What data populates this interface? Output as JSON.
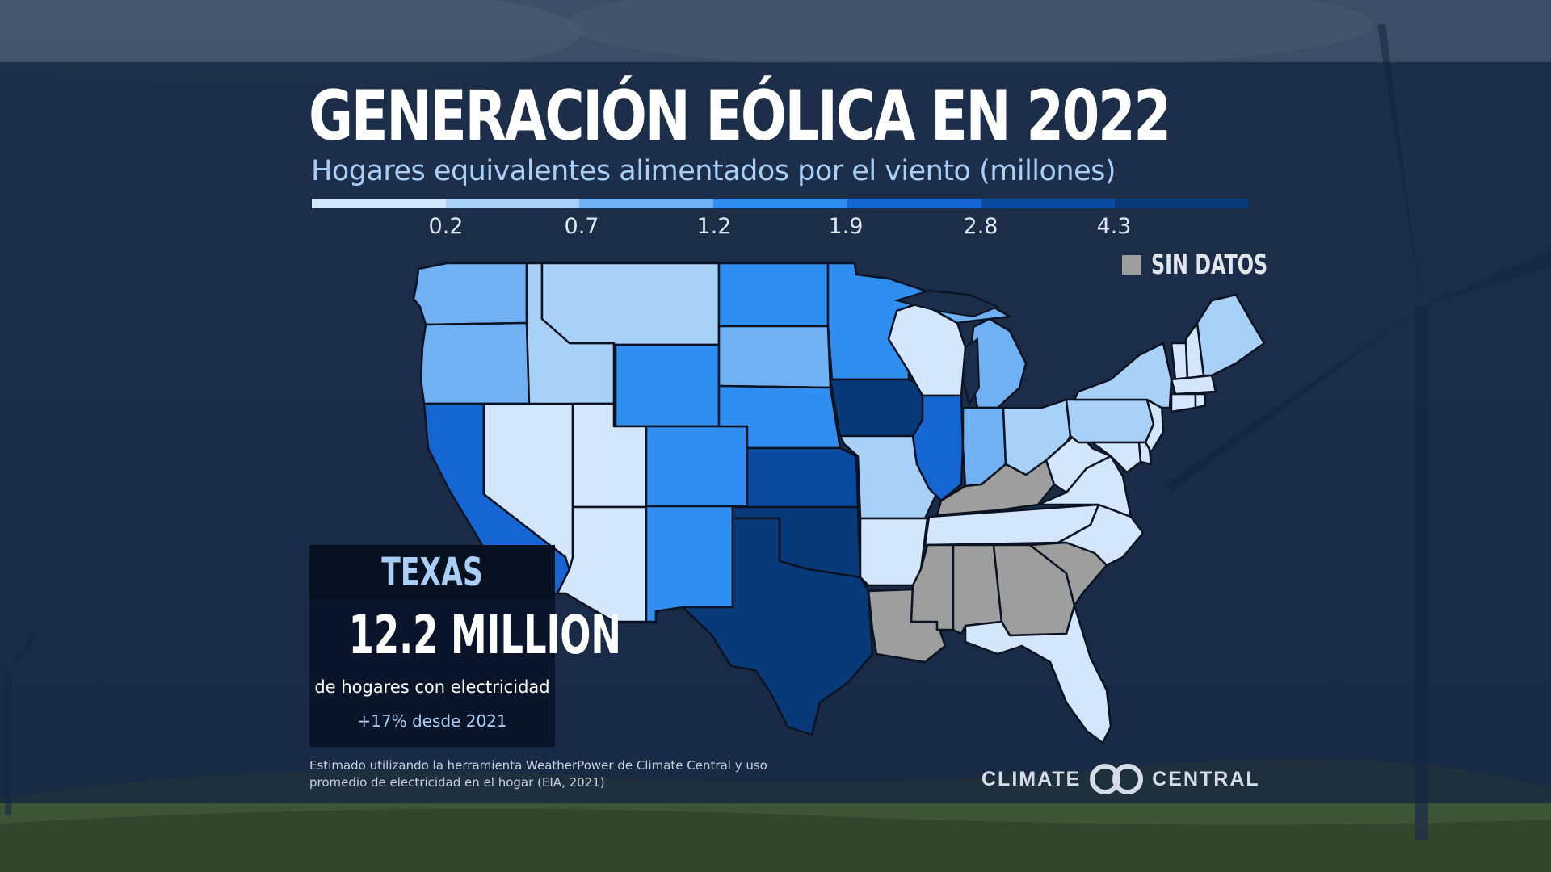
{
  "title": "GENERACIÓN EÓLICA EN 2022",
  "subtitle": "Hogares equivalentes alimentados por el viento (millones)",
  "legend": {
    "colors": [
      "#d3e6fb",
      "#a9d0f7",
      "#6fb1f3",
      "#2f8ef0",
      "#1566d3",
      "#0a4a9f",
      "#083a7a"
    ],
    "thresholds": [
      "0.2",
      "0.7",
      "1.2",
      "1.9",
      "2.8",
      "4.3"
    ],
    "no_data_label": "SIN DATOS",
    "no_data_color": "#9e9e9e"
  },
  "map": {
    "state_classes": {
      "WA": 2,
      "OR": 2,
      "CA": 4,
      "NV": 0,
      "ID": 1,
      "MT": 1,
      "WY": 3,
      "UT": 0,
      "AZ": 0,
      "CO": 3,
      "NM": 3,
      "ND": 3,
      "SD": 2,
      "NE": 3,
      "KS": 5,
      "OK": 6,
      "TX": 6,
      "MN": 3,
      "IA": 6,
      "MO": 1,
      "AR": 0,
      "WI": 0,
      "IL": 4,
      "MI": 2,
      "IN": 2,
      "OH": 1,
      "KY": "nodata",
      "TN": 0,
      "MS": "nodata",
      "AL": "nodata",
      "GA": "nodata",
      "FL": 0,
      "SC": "nodata",
      "LA": "nodata",
      "NC": 0,
      "VA": 0,
      "WV": 0,
      "PA": 1,
      "NY": 1,
      "ME": 1,
      "NH": 0,
      "VT": 0,
      "MA": 0,
      "CT": 0,
      "RI": 0,
      "NJ": 0,
      "DE": 0,
      "MD": 0
    }
  },
  "callout": {
    "state": "TEXAS",
    "value": "12.2 MILLION",
    "description": "de hogares con electricidad",
    "change": "+17% desde 2021"
  },
  "source": {
    "line1": "Estimado utilizando la herramienta WeatherPower de Climate Central y uso",
    "line2": "promedio de electricidad en el hogar (EIA, 2021)"
  },
  "brand": {
    "left": "CLIMATE",
    "right": "CENTRAL"
  }
}
